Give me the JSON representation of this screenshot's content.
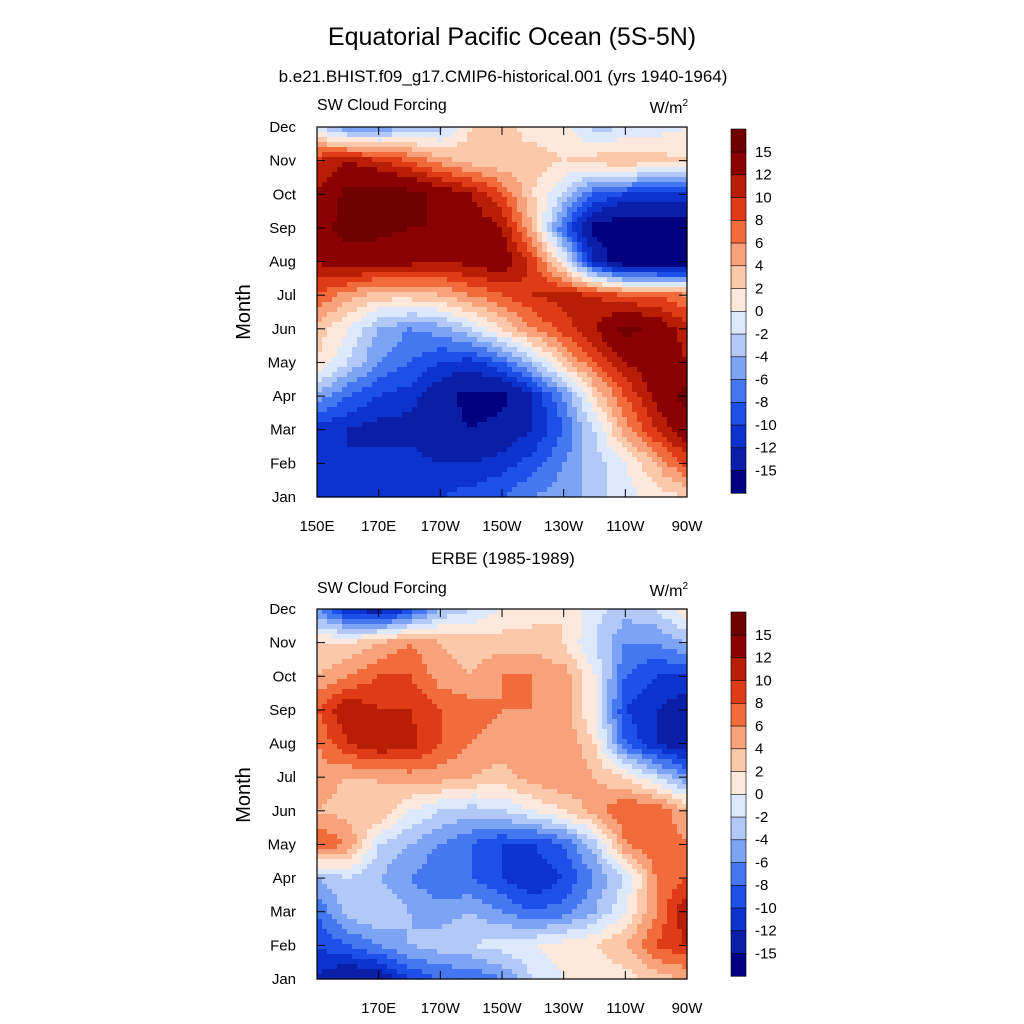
{
  "figure": {
    "title": "Equatorial Pacific Ocean (5S-5N)"
  },
  "chart_data": [
    {
      "type": "heatmap",
      "title": "b.e21.BHIST.f09_g17.CMIP6-historical.001 (yrs 1940-1964)",
      "left_string": "SW Cloud Forcing",
      "units": "W/m",
      "units_superscript": "2",
      "ylabel": "Month",
      "xlabel": "",
      "x_ticks": [
        "150E",
        "170E",
        "170W",
        "150W",
        "130W",
        "110W",
        "90W"
      ],
      "x_tick_values": [
        150,
        170,
        190,
        210,
        230,
        250,
        270
      ],
      "y_ticks": [
        "Jan",
        "Feb",
        "Mar",
        "Apr",
        "May",
        "Jun",
        "Jul",
        "Aug",
        "Sep",
        "Oct",
        "Nov",
        "Dec"
      ],
      "xlim": [
        150,
        270
      ],
      "ylim": [
        1,
        12
      ],
      "colorbar_labels": [
        "-15",
        "-12",
        "-10",
        "-8",
        "-6",
        "-4",
        "-2",
        "0",
        "2",
        "4",
        "6",
        "8",
        "10",
        "12",
        "15"
      ],
      "colorbar_levels": [
        -15,
        -12,
        -10,
        -8,
        -6,
        -4,
        -2,
        0,
        2,
        4,
        6,
        8,
        10,
        12,
        15
      ],
      "lon": [
        150,
        160,
        170,
        180,
        190,
        200,
        210,
        220,
        230,
        240,
        250,
        260,
        270
      ],
      "values": [
        [
          -12,
          -12,
          -11,
          -10,
          -10,
          -9,
          -8,
          -6,
          -5,
          -3,
          -1,
          1,
          2
        ],
        [
          -12,
          -12,
          -11,
          -11,
          -12,
          -12,
          -11,
          -9,
          -6,
          -3,
          0,
          4,
          9
        ],
        [
          -11,
          -12,
          -13,
          -13,
          -14,
          -15,
          -14,
          -12,
          -8,
          -2,
          5,
          10,
          14
        ],
        [
          -5,
          -8,
          -10,
          -11,
          -14,
          -16,
          -16,
          -12,
          -6,
          2,
          8,
          13,
          16
        ],
        [
          2,
          -2,
          -6,
          -8,
          -10,
          -11,
          -8,
          -3,
          3,
          8,
          12,
          14,
          12
        ],
        [
          3,
          0,
          -4,
          -6,
          -5,
          -2,
          2,
          6,
          9,
          12,
          16,
          14,
          11
        ],
        [
          8,
          5,
          3,
          3,
          4,
          6,
          8,
          10,
          11,
          10,
          8,
          8,
          6
        ],
        [
          12,
          14,
          13,
          13,
          12,
          13,
          14,
          9,
          0,
          -12,
          -18,
          -18,
          -17
        ],
        [
          14,
          16,
          16,
          15,
          15,
          14,
          12,
          4,
          -8,
          -16,
          -18,
          -18,
          -17
        ],
        [
          12,
          16,
          17,
          16,
          14,
          12,
          8,
          2,
          -2,
          -8,
          -10,
          -10,
          -10
        ],
        [
          10,
          12,
          10,
          8,
          5,
          3,
          2,
          3,
          2,
          3,
          4,
          3,
          2
        ],
        [
          -2,
          -6,
          -6,
          -4,
          -3,
          2,
          3,
          1,
          1,
          -3,
          -2,
          -1,
          0
        ]
      ]
    },
    {
      "type": "heatmap",
      "title": "ERBE (1985-1989)",
      "left_string": "SW Cloud Forcing",
      "units": "W/m",
      "units_superscript": "2",
      "ylabel": "Month",
      "xlabel": "",
      "x_ticks": [
        "170E",
        "170W",
        "150W",
        "130W",
        "110W",
        "90W"
      ],
      "x_tick_values": [
        170,
        190,
        210,
        230,
        250,
        270
      ],
      "y_ticks": [
        "Jan",
        "Feb",
        "Mar",
        "Apr",
        "May",
        "Jun",
        "Jul",
        "Aug",
        "Sep",
        "Oct",
        "Nov",
        "Dec"
      ],
      "xlim": [
        150,
        270
      ],
      "ylim": [
        1,
        12
      ],
      "colorbar_labels": [
        "-15",
        "-12",
        "-10",
        "-8",
        "-6",
        "-4",
        "-2",
        "0",
        "2",
        "4",
        "6",
        "8",
        "10",
        "12",
        "15"
      ],
      "colorbar_levels": [
        -15,
        -12,
        -10,
        -8,
        -6,
        -4,
        -2,
        0,
        2,
        4,
        6,
        8,
        10,
        12,
        15
      ],
      "lon": [
        150,
        160,
        170,
        180,
        190,
        200,
        210,
        220,
        230,
        240,
        250,
        260,
        270
      ],
      "values": [
        [
          -12,
          -15,
          -14,
          -10,
          -8,
          -8,
          -6,
          -2,
          0,
          0,
          1,
          3,
          4
        ],
        [
          -10,
          -8,
          -6,
          -4,
          -3,
          -2,
          -1,
          0,
          1,
          2,
          4,
          8,
          10
        ],
        [
          -8,
          -3,
          -2,
          -4,
          -5,
          -4,
          -6,
          -8,
          -7,
          -4,
          0,
          6,
          12
        ],
        [
          -4,
          -2,
          -4,
          -6,
          -8,
          -8,
          -10,
          -12,
          -10,
          -6,
          -2,
          6,
          8
        ],
        [
          8,
          6,
          -2,
          -4,
          -6,
          -8,
          -10,
          -10,
          -8,
          -3,
          6,
          8,
          6
        ],
        [
          4,
          3,
          4,
          0,
          -2,
          -3,
          -2,
          0,
          2,
          5,
          8,
          8,
          4
        ],
        [
          5,
          4,
          4,
          5,
          5,
          4,
          3,
          5,
          6,
          4,
          2,
          -2,
          -6
        ],
        [
          6,
          10,
          12,
          11,
          8,
          6,
          5,
          6,
          6,
          2,
          -8,
          -12,
          -14
        ],
        [
          8,
          12,
          10,
          10,
          8,
          7,
          6,
          6,
          5,
          0,
          -10,
          -12,
          -14
        ],
        [
          4,
          6,
          8,
          8,
          5,
          4,
          6,
          6,
          5,
          0,
          -8,
          -10,
          -10
        ],
        [
          2,
          2,
          4,
          6,
          4,
          3,
          3,
          3,
          2,
          -2,
          -6,
          -6,
          -4
        ],
        [
          -6,
          -12,
          -14,
          -10,
          -4,
          -2,
          0,
          1,
          2,
          -1,
          -3,
          -2,
          2
        ]
      ]
    }
  ]
}
